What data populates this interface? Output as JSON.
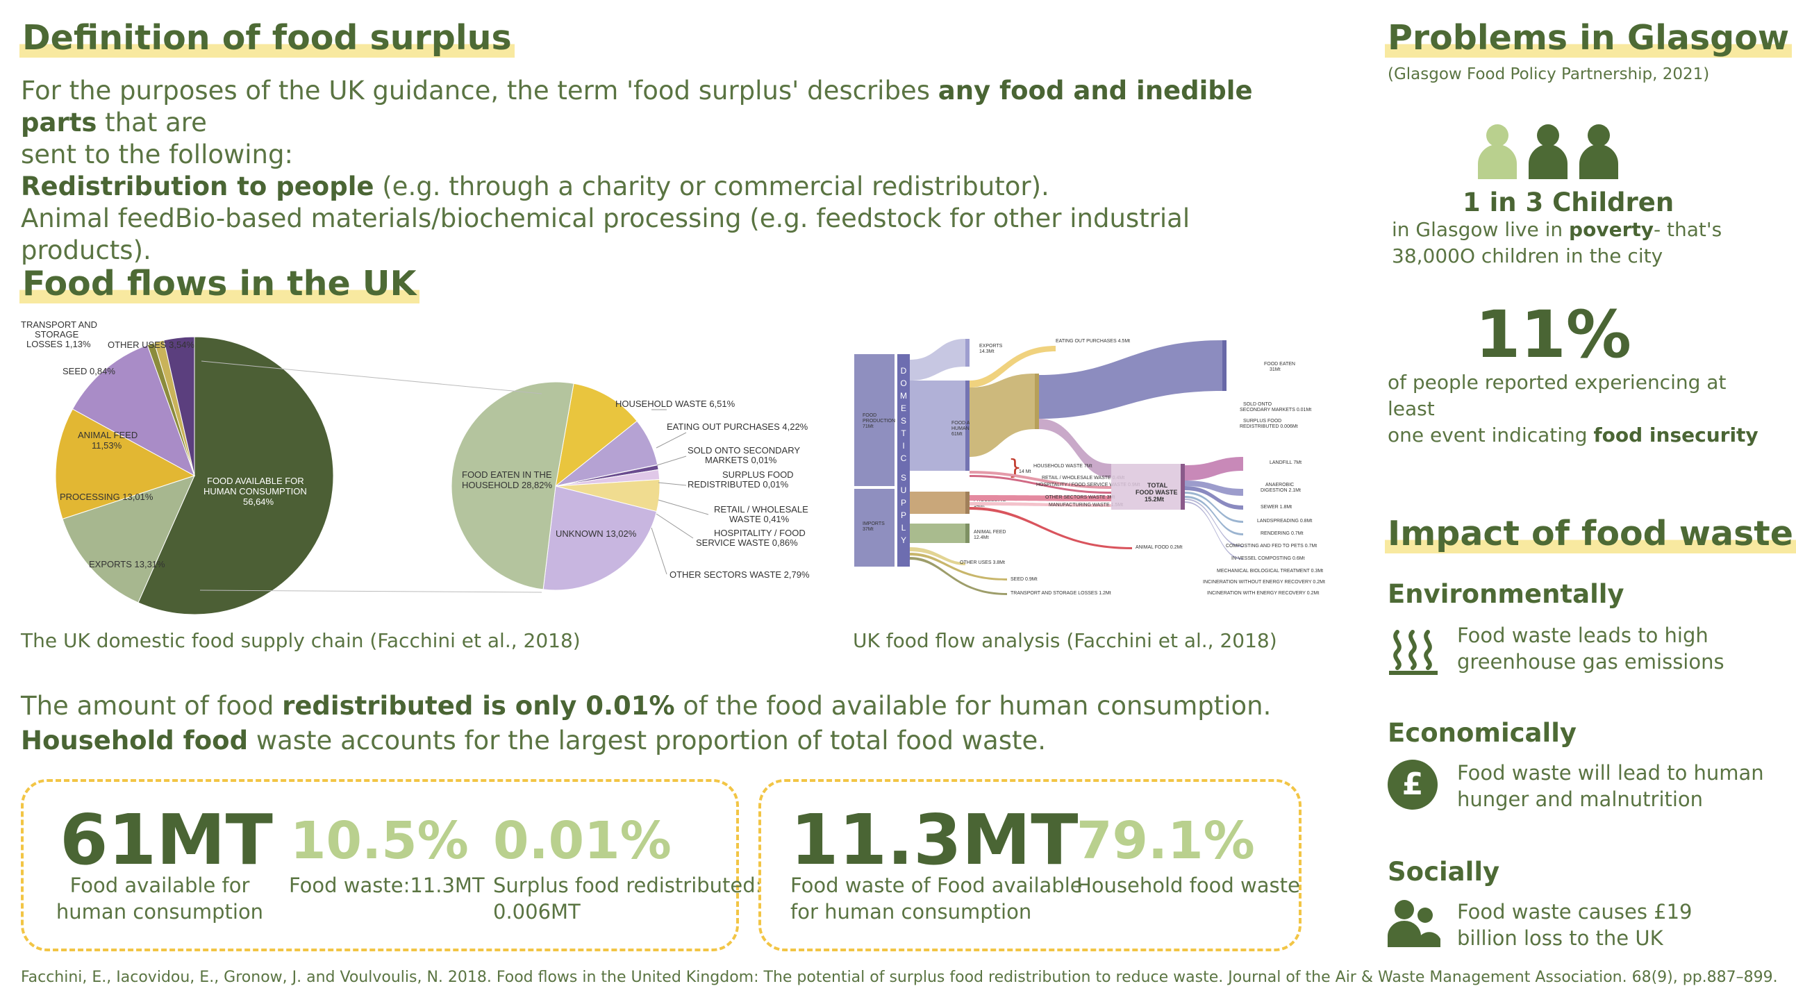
{
  "definition": {
    "title": "Definition of food surplus",
    "line1_pre": "For the purposes of the UK guidance, the term 'food surplus' describes ",
    "line1_bold": "any food and inedible parts",
    "line1_post": " that are",
    "line2": "sent to the following:",
    "line3_bold": "Redistribution to people",
    "line3_post": " (e.g. through a charity or commercial redistributor).",
    "line4": "Animal feedBio-based materials/biochemical processing (e.g. feedstock for other industrial products)."
  },
  "flows": {
    "title": "Food flows in the UK",
    "caption_left": "The UK domestic food supply chain (Facchini et al., 2018)",
    "caption_right": "UK food flow analysis (Facchini et al., 2018)",
    "summary1_pre": "The amount of food ",
    "summary1_bold": "redistributed is only 0.01%",
    "summary1_post": " of the food available for human consumption.",
    "summary2_bold": "Household food",
    "summary2_post": " waste accounts for the largest proportion of total food waste."
  },
  "chart_data": [
    {
      "type": "pie",
      "slices": [
        {
          "label": "FOOD AVAILABLE FOR HUMAN CONSUMPTION",
          "value": 56.64,
          "value_label": "56,64%",
          "color": "#4c5f35"
        },
        {
          "label": "EXPORTS",
          "value": 13.31,
          "value_label": "13,31%",
          "color": "#a7b78f"
        },
        {
          "label": "PROCESSING",
          "value": 13.01,
          "value_label": "13,01%",
          "color": "#e2b733"
        },
        {
          "label": "ANIMAL FEED",
          "value": 11.53,
          "value_label": "11,53%",
          "color": "#a98cc7"
        },
        {
          "label": "SEED",
          "value": 0.84,
          "value_label": "0,84%",
          "color": "#8b8b3c"
        },
        {
          "label": "TRANSPORT AND STORAGE LOSSES",
          "value": 1.13,
          "value_label": "1,13%",
          "color": "#c9b35a"
        },
        {
          "label": "OTHER USES",
          "value": 3.54,
          "value_label": "3,54%",
          "color": "#5b3f7e"
        }
      ]
    },
    {
      "type": "pie",
      "slices": [
        {
          "label": "FOOD EATEN IN THE HOUSEHOLD",
          "value": 28.82,
          "value_label": "28,82%",
          "color": "#b4c49e"
        },
        {
          "label": "HOUSEHOLD WASTE",
          "value": 6.51,
          "value_label": "6,51%",
          "color": "#e9c53e"
        },
        {
          "label": "EATING OUT PURCHASES",
          "value": 4.22,
          "value_label": "4,22%",
          "color": "#b5a2d3"
        },
        {
          "label": "SOLD ONTO SECONDARY MARKETS",
          "value": 0.01,
          "value_label": "0,01%",
          "color": "#7b5fa3"
        },
        {
          "label": "SURPLUS FOOD REDISTRIBUTED",
          "value": 0.01,
          "value_label": "0,01%",
          "color": "#5a5a5a"
        },
        {
          "label": "RETAIL / WHOLESALE WASTE",
          "value": 0.41,
          "value_label": "0,41%",
          "color": "#6a4c8f"
        },
        {
          "label": "HOSPITALITY / FOOD SERVICE WASTE",
          "value": 0.86,
          "value_label": "0,86%",
          "color": "#e0c8e8"
        },
        {
          "label": "OTHER SECTORS WASTE",
          "value": 2.79,
          "value_label": "2,79%",
          "color": "#f0dc90"
        },
        {
          "label": "UNKNOWN",
          "value": 13.02,
          "value_label": "13,02%",
          "color": "#c8b6e0"
        }
      ]
    }
  ],
  "sankey": {
    "vertical_label": "DOMESTIC SUPPLY",
    "nodes": {
      "food_production": "FOOD PRODUCTION 71Mt",
      "imports": "IMPORTS 37Mt",
      "exports": "EXPORTS 14.3Mt",
      "food_available": "FOOD AVAILABLE FOR HUMAN CONSUMPTION 61Mt",
      "processing": "PROCESSING 14Mt",
      "animal_feed": "ANIMAL FEED 12.4Mt",
      "other_uses": "OTHER USES 3.8Mt",
      "seed": "SEED 0.9Mt",
      "transport": "TRANSPORT AND STORAGE LOSSES 1.2Mt",
      "eating_out": "EATING OUT PURCHASES 4.5Mt",
      "household_purchases": "HOUSEHOLD PURCHASES 38Mt",
      "food_eaten": "FOOD EATEN 31Mt",
      "sold_onto": "SOLD ONTO SECONDARY MARKETS 0.01Mt",
      "surplus": "SURPLUS FOOD REDISTRIBUTED 0.006Mt",
      "household_waste": "HOUSEHOLD WASTE 7Mt",
      "retail": "RETAIL / WHOLESALE WASTE 0.4Mt",
      "hospitality": "HOSPITALITY / FOOD SERVICE WASTE 0.9Mt",
      "other_sectors": "OTHER SECTORS WASTE 3Mt",
      "manufacturing": "MANUFACTURING WASTE 1.5Mt",
      "animal_food_waste": "ANIMAL FOOD 0.2Mt",
      "total": "TOTAL FOOD WASTE 15.2Mt",
      "bracket": "14 Mt",
      "landfill": "LANDFILL 7Mt",
      "anaerobic": "ANAEROBIC DIGESTION 2.1Mt",
      "sewer": "SEWER 1.8Mt",
      "landspreading": "LANDSPREADING 0.8Mt",
      "rendering": "RENDERING 0.7Mt",
      "composting": "COMPOSTING AND FED TO PETS 0.7Mt",
      "invessel": "IN-VESSEL COMPOSTING 0.6Mt",
      "mbt": "MECHANICAL BIOLOGICAL TREATMENT 0.3Mt",
      "incineration": "INCINERATION WITHOUT ENERGY RECOVERY 0.2Mt",
      "incineration_er": "INCINERATION WITH ENERGY RECOVERY 0.2Mt"
    }
  },
  "stats_box1": [
    {
      "value": "61MT",
      "caption1": "Food available for",
      "caption2": "human consumption"
    },
    {
      "value": "10.5%",
      "caption1": "Food waste:11.3MT",
      "caption2": ""
    },
    {
      "value": "0.01%",
      "caption1": "Surplus food redistributed:",
      "caption2": "0.006MT"
    }
  ],
  "stats_box2": [
    {
      "value": "11.3MT",
      "caption1": "Food waste of Food available",
      "caption2": "for human consumption"
    },
    {
      "value": "79.1%",
      "caption1": "Household food waste",
      "caption2": ""
    }
  ],
  "footer": "Facchini, E., Iacovidou, E., Gronow, J. and Voulvoulis, N. 2018. Food flows in the United Kingdom: The potential of surplus food redistribution to reduce waste. Journal of the Air & Waste Management Association. 68(9), pp.887–899.",
  "glasgow": {
    "title": "Problems in Glasgow",
    "source": "(Glasgow Food Policy Partnership, 2021)",
    "children_stat": "1 in 3 Children",
    "children_line1_pre": "in Glasgow live in ",
    "children_line1_bold": "poverty",
    "children_line1_post": "- that's",
    "children_line2": "38,000O children in the city",
    "percent": "11%",
    "percent_line1": "of people reported experiencing at least",
    "percent_line2_pre": "one event indicating ",
    "percent_line2_bold": "food insecurity",
    "person_light_color": "#b9d08e",
    "person_dark_color": "#4d6a35"
  },
  "impact": {
    "title": "Impact of food waste",
    "env_heading": "Environmentally",
    "env_line1": "Food waste leads to high",
    "env_line2": "greenhouse gas emissions",
    "env_icon": "heat-waves-icon",
    "eco_heading": "Economically",
    "eco_icon_symbol": "£",
    "eco_line1": "Food waste will lead to human",
    "eco_line2": "hunger and malnutrition",
    "soc_heading": "Socially",
    "soc_icon": "people-icon",
    "soc_line1": "Food waste causes £19",
    "soc_line2": "billion loss to the UK"
  }
}
